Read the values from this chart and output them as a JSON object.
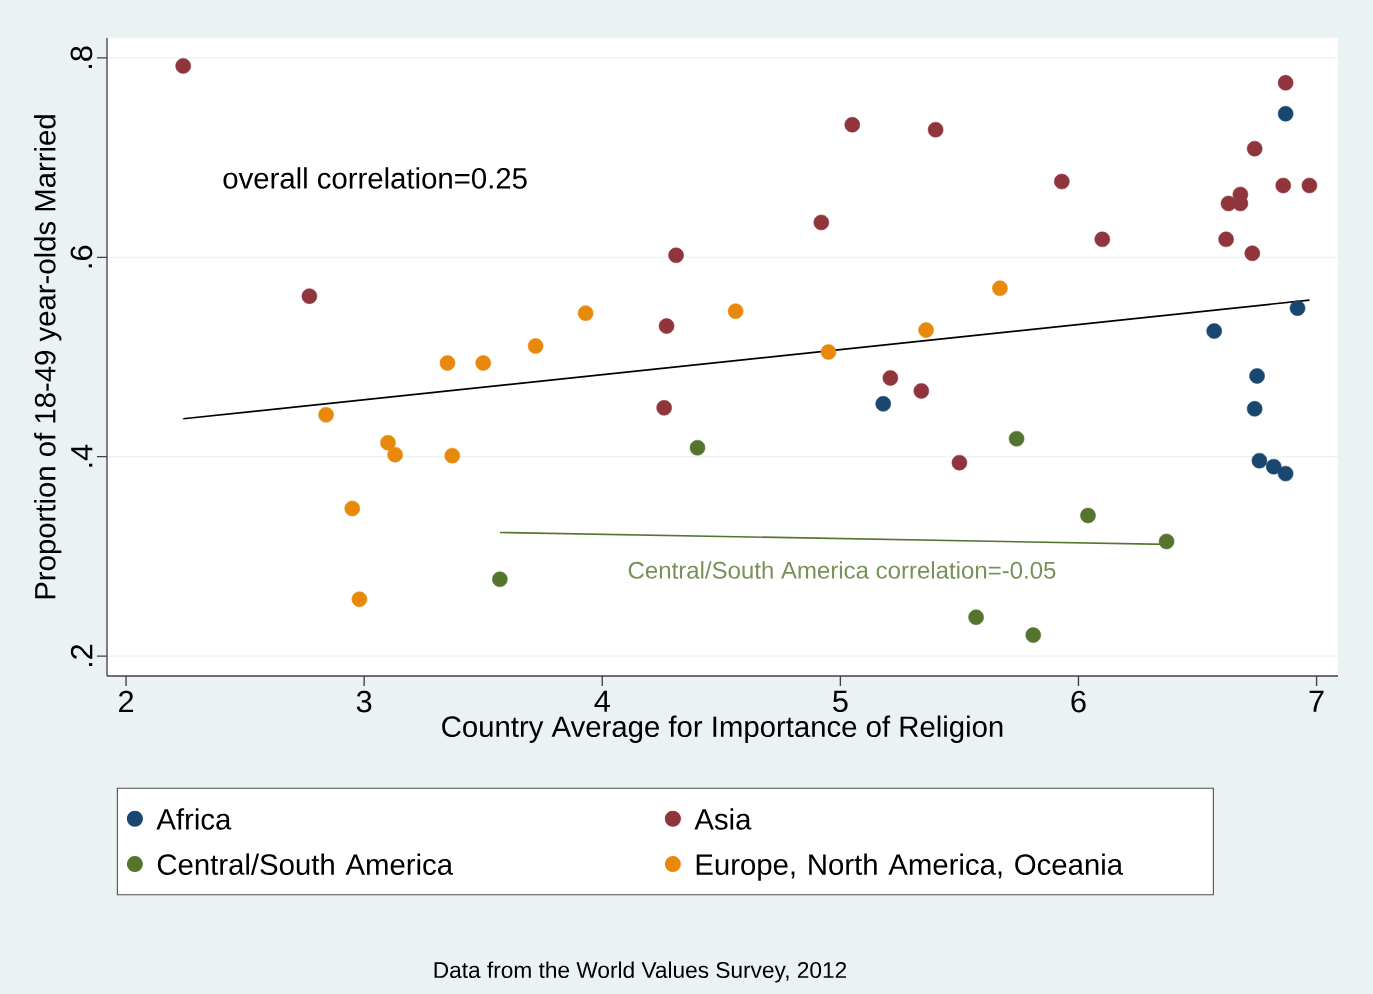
{
  "chart_data": {
    "type": "scatter",
    "xlabel": "Country Average for Importance of Religion",
    "ylabel": "Proportion of 18-49 year-olds Married",
    "xlim": [
      1.92,
      7.09
    ],
    "ylim": [
      0.18,
      0.82
    ],
    "xticks": [
      2,
      3,
      4,
      5,
      6,
      7
    ],
    "yticks": [
      {
        "value": 0.2,
        "label": ".2"
      },
      {
        "value": 0.4,
        "label": ".4"
      },
      {
        "value": 0.6,
        "label": ".6"
      },
      {
        "value": 0.8,
        "label": ".8"
      }
    ],
    "grid": "y",
    "legend": "bottom",
    "series": [
      {
        "name": "Africa",
        "marker": "circle",
        "color": "#1a476f",
        "x": [
          6.87,
          6.92,
          6.57,
          6.75,
          6.74,
          6.76,
          6.82,
          6.87,
          5.18
        ],
        "values": [
          0.744,
          0.549,
          0.526,
          0.481,
          0.448,
          0.396,
          0.39,
          0.383,
          0.453
        ]
      },
      {
        "name": "Asia",
        "marker": "circle",
        "color": "#90353b",
        "x": [
          2.24,
          2.77,
          4.31,
          4.27,
          4.26,
          4.92,
          5.05,
          5.4,
          5.21,
          5.34,
          5.5,
          5.93,
          6.1,
          6.87,
          6.74,
          6.68,
          6.63,
          6.68,
          6.86,
          6.97,
          6.62,
          6.73
        ],
        "values": [
          0.792,
          0.561,
          0.602,
          0.531,
          0.449,
          0.635,
          0.733,
          0.728,
          0.479,
          0.466,
          0.394,
          0.676,
          0.618,
          0.775,
          0.709,
          0.663,
          0.654,
          0.654,
          0.672,
          0.672,
          0.618,
          0.604
        ]
      },
      {
        "name": "Central/South America",
        "marker": "circle",
        "color": "#55752f",
        "x": [
          3.57,
          4.4,
          5.57,
          5.74,
          5.81,
          6.04,
          6.37
        ],
        "values": [
          0.277,
          0.409,
          0.239,
          0.418,
          0.221,
          0.341,
          0.315
        ]
      },
      {
        "name": "Europe, North America, Oceania",
        "marker": "circle",
        "color": "#e8890c",
        "x": [
          2.84,
          2.95,
          2.98,
          3.1,
          3.13,
          3.37,
          3.35,
          3.5,
          3.72,
          3.93,
          4.56,
          4.95,
          5.36,
          5.67
        ],
        "values": [
          0.442,
          0.348,
          0.257,
          0.414,
          0.402,
          0.401,
          0.494,
          0.494,
          0.511,
          0.544,
          0.546,
          0.505,
          0.527,
          0.569
        ]
      },
      {
        "type": "line",
        "marker": "none",
        "color": "#000000",
        "x": [
          2.24,
          6.97
        ],
        "values": [
          0.438,
          0.557
        ]
      },
      {
        "type": "line",
        "marker": "none",
        "color": "#55752f",
        "x": [
          3.57,
          6.37
        ],
        "values": [
          0.324,
          0.312
        ]
      }
    ],
    "annotations": [
      "overall correlation=0.25",
      "Central/South America correlation=-0.05",
      "Data from the World Values Survey, 2012"
    ]
  }
}
